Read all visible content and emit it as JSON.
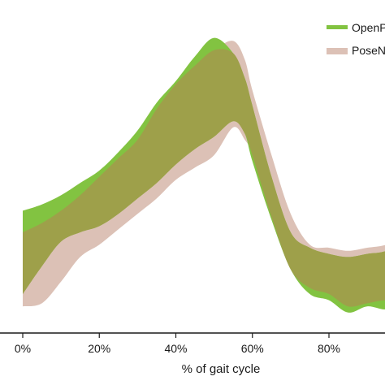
{
  "chart_data": {
    "type": "area",
    "title": "",
    "xlabel": "% of gait cycle",
    "ylabel": "",
    "xlim": [
      -3,
      100
    ],
    "ylim": [
      0,
      1
    ],
    "x_ticks": [
      0,
      20,
      40,
      60,
      80
    ],
    "x_tick_labels": [
      "0%",
      "20%",
      "40%",
      "60%",
      "80%"
    ],
    "grid": false,
    "legend_position": "top-right",
    "series": [
      {
        "name": "PoseNet",
        "color": "#dcc1b6",
        "x": [
          0,
          5,
          10,
          15,
          20,
          25,
          30,
          35,
          40,
          45,
          50,
          55,
          58,
          60,
          65,
          70,
          75,
          80,
          85,
          90,
          95,
          100
        ],
        "upper": [
          0.3,
          0.33,
          0.37,
          0.42,
          0.48,
          0.54,
          0.6,
          0.7,
          0.78,
          0.84,
          0.89,
          0.92,
          0.86,
          0.76,
          0.55,
          0.36,
          0.26,
          0.25,
          0.24,
          0.25,
          0.26,
          0.29
        ],
        "lower": [
          0.06,
          0.07,
          0.14,
          0.22,
          0.26,
          0.31,
          0.36,
          0.41,
          0.47,
          0.51,
          0.55,
          0.64,
          0.6,
          0.55,
          0.35,
          0.18,
          0.12,
          0.1,
          0.06,
          0.07,
          0.08,
          0.07
        ]
      },
      {
        "name": "OpenPose",
        "color": "#82c341",
        "x": [
          0,
          5,
          10,
          15,
          20,
          25,
          30,
          35,
          40,
          45,
          50,
          55,
          58,
          60,
          65,
          70,
          75,
          80,
          85,
          90,
          95,
          100
        ],
        "upper": [
          0.37,
          0.39,
          0.42,
          0.46,
          0.5,
          0.56,
          0.63,
          0.72,
          0.79,
          0.87,
          0.93,
          0.88,
          0.8,
          0.71,
          0.48,
          0.3,
          0.25,
          0.23,
          0.22,
          0.23,
          0.24,
          0.28
        ],
        "lower": [
          0.1,
          0.19,
          0.27,
          0.3,
          0.32,
          0.36,
          0.41,
          0.46,
          0.52,
          0.57,
          0.61,
          0.66,
          0.62,
          0.53,
          0.34,
          0.18,
          0.1,
          0.08,
          0.04,
          0.06,
          0.05,
          0.07
        ]
      }
    ],
    "overlap_color": "#9ea04a",
    "legend": [
      {
        "label": "OpenPose",
        "color": "#82c341"
      },
      {
        "label": "PoseNet",
        "color": "#dcc1b6"
      }
    ]
  }
}
